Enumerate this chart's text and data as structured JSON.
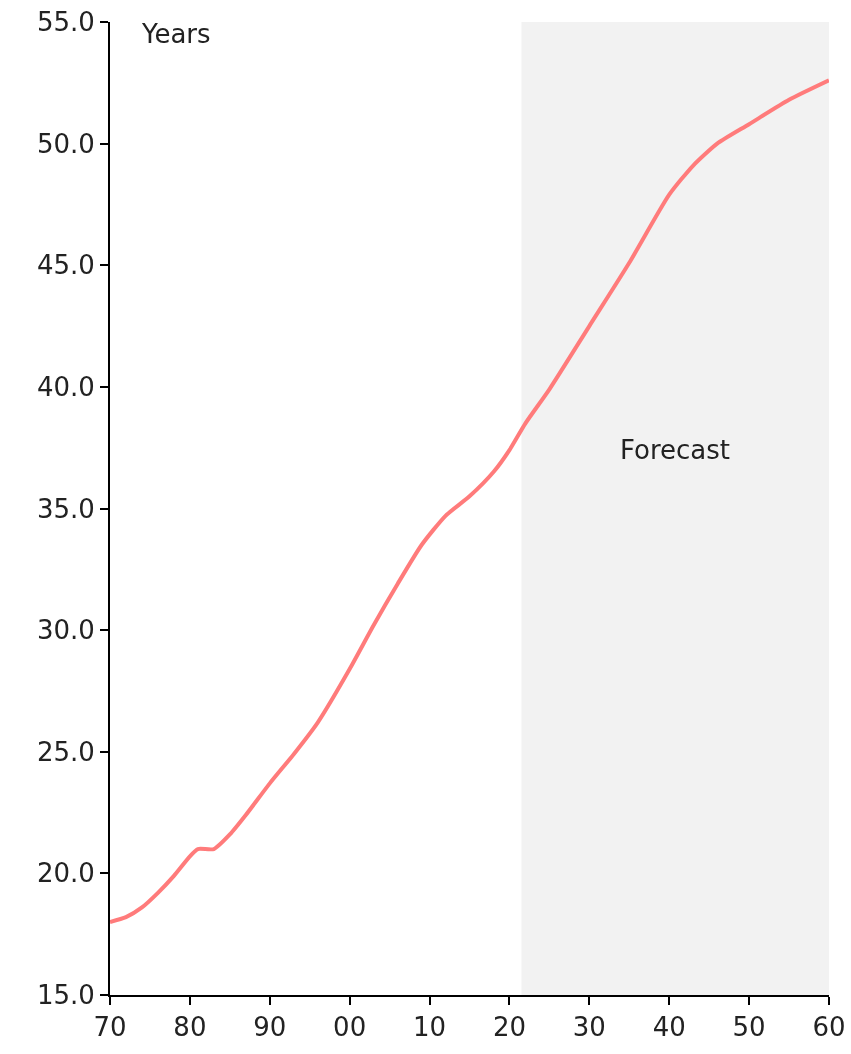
{
  "chart_data": {
    "type": "line",
    "ylabel": "Years",
    "x": [
      1970,
      1972,
      1974,
      1976,
      1978,
      1980,
      1981,
      1983,
      1985,
      1987,
      1990,
      1993,
      1996,
      2000,
      2003,
      2006,
      2009,
      2012,
      2015,
      2018,
      2020,
      2022,
      2025,
      2030,
      2035,
      2040,
      2043,
      2046,
      2050,
      2055,
      2060
    ],
    "series": [
      {
        "color": "#ff7b7b",
        "values": [
          18.0,
          18.2,
          18.6,
          19.2,
          19.9,
          20.7,
          21.0,
          21.0,
          21.6,
          22.4,
          23.7,
          24.9,
          26.2,
          28.4,
          30.2,
          31.9,
          33.5,
          34.7,
          35.5,
          36.5,
          37.4,
          38.5,
          39.9,
          42.5,
          45.1,
          47.9,
          49.1,
          50.0,
          50.8,
          51.8,
          52.6
        ]
      }
    ],
    "xlim": [
      1970,
      2060
    ],
    "xticks": [
      {
        "value": 1970,
        "label": "70"
      },
      {
        "value": 1980,
        "label": "80"
      },
      {
        "value": 1990,
        "label": "90"
      },
      {
        "value": 2000,
        "label": "00"
      },
      {
        "value": 2010,
        "label": "10"
      },
      {
        "value": 2020,
        "label": "20"
      },
      {
        "value": 2030,
        "label": "30"
      },
      {
        "value": 2040,
        "label": "40"
      },
      {
        "value": 2050,
        "label": "50"
      },
      {
        "value": 2060,
        "label": "60"
      }
    ],
    "ylim": [
      15,
      55
    ],
    "yticks": [
      {
        "value": 15,
        "label": "15.0"
      },
      {
        "value": 20,
        "label": "20.0"
      },
      {
        "value": 25,
        "label": "25.0"
      },
      {
        "value": 30,
        "label": "30.0"
      },
      {
        "value": 35,
        "label": "35.0"
      },
      {
        "value": 40,
        "label": "40.0"
      },
      {
        "value": 45,
        "label": "45.0"
      },
      {
        "value": 50,
        "label": "50.0"
      },
      {
        "value": 55,
        "label": "55.0"
      }
    ],
    "bands": [
      {
        "axis": "x",
        "from": 2021.5,
        "to": 2060,
        "label": "Forecast",
        "color": "#f2f2f2"
      }
    ],
    "grid": false,
    "line_style": "solid",
    "marker": "none"
  }
}
